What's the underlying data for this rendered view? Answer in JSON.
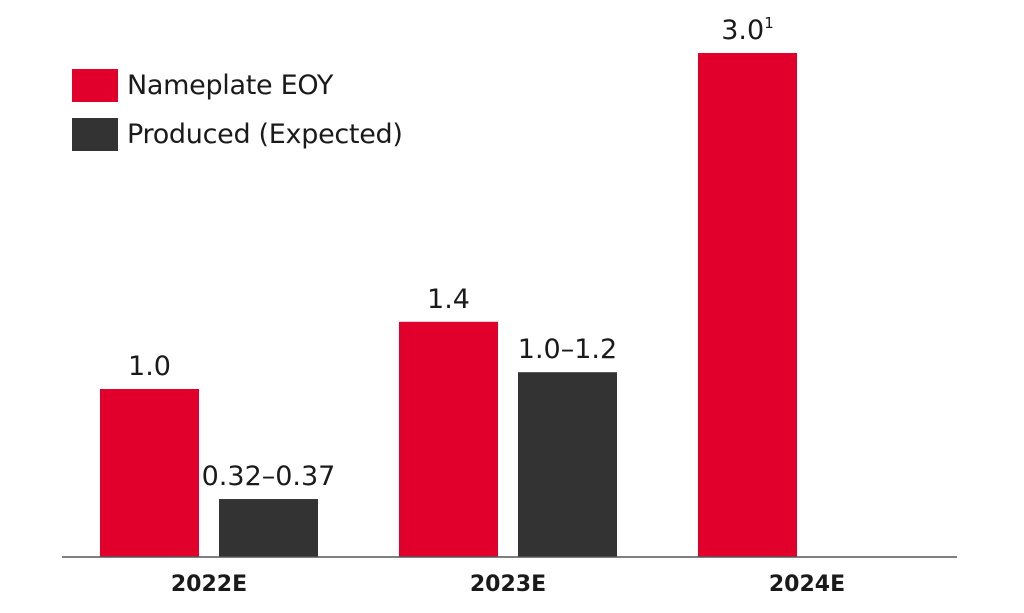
{
  "chart_data": {
    "type": "bar",
    "title": "",
    "xlabel": "",
    "ylabel": "",
    "categories": [
      "2022E",
      "2023E",
      "2024E"
    ],
    "ylim": [
      0,
      3.0
    ],
    "grid": false,
    "legend_position": "top-left",
    "series": [
      {
        "name": "Nameplate EOY",
        "color": "#e0002b",
        "values": [
          1.0,
          1.4,
          3.0
        ],
        "labels": [
          "1.0",
          "1.4",
          "3.0"
        ],
        "label_superscripts": [
          "",
          "",
          "1"
        ]
      },
      {
        "name": "Produced (Expected)",
        "color": "#333333",
        "values": [
          0.345,
          1.1,
          null
        ],
        "range": [
          [
            0.32,
            0.37
          ],
          [
            1.0,
            1.2
          ],
          null
        ],
        "labels": [
          "0.32–0.37",
          "1.0–1.2",
          ""
        ],
        "label_superscripts": [
          "",
          "",
          ""
        ]
      }
    ]
  }
}
